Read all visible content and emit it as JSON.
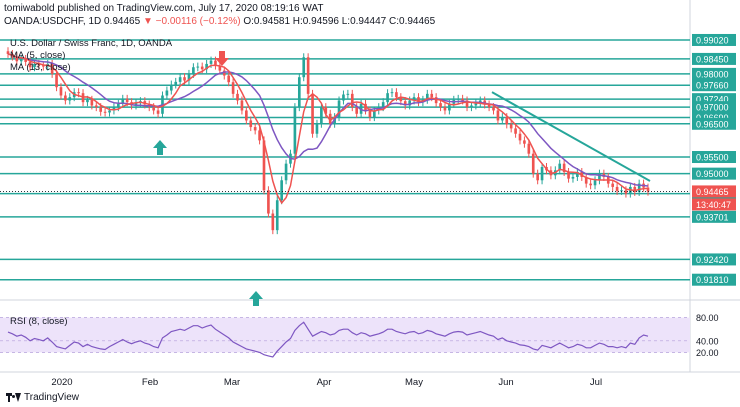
{
  "header": {
    "line1": "tomiwabold published on TradingView.com, July 17, 2020 08:19:16 WAT",
    "symbol": "OANDA:USDCHF, 1D",
    "last": "0.94465",
    "change": "−0.00116 (−0.12%)",
    "ohlc": "O:0.94581 H:0.94596 L:0.94447 C:0.94465"
  },
  "legend": {
    "title": "U.S. Dollar / Swiss Franc, 1D, OANDA",
    "ma5": "MA (5, close)",
    "ma13": "MA (13, close)",
    "rsi": "RSI (8, close)"
  },
  "footer": {
    "brand": "TradingView"
  },
  "colors": {
    "up": "#26a69a",
    "down": "#ef5350",
    "ma5": "#ef5350",
    "ma13": "#7e57c2",
    "level": "#26a69a",
    "trend": "#26a69a",
    "rsi": "#7e57c2",
    "rsiBand": "#ede3fa"
  },
  "chart_data": {
    "type": "candlestick",
    "price_axis": {
      "ticks": [
        "0.99020",
        "0.98450",
        "0.98000",
        "0.97660",
        "0.97240",
        "0.97000",
        "0.96690",
        "0.96500",
        "0.95500",
        "0.95000",
        "0.94400",
        "0.93701",
        "0.92420",
        "0.91810"
      ],
      "last_price": "0.94465",
      "countdown": "13:40:47"
    },
    "time_axis": [
      "2020",
      "Feb",
      "Mar",
      "Apr",
      "May",
      "Jun",
      "Jul"
    ],
    "levels": [
      0.9902,
      0.9845,
      0.98,
      0.9766,
      0.9724,
      0.97,
      0.9669,
      0.965,
      0.955,
      0.95,
      0.944,
      0.93701,
      0.9242,
      0.9181
    ],
    "rsi_axis": [
      "80.00",
      "40.00",
      "20.00"
    ],
    "rsi_range": [
      0,
      100
    ],
    "rsi_band": [
      20,
      80
    ],
    "ohlc_close": [
      0.986,
      0.9852,
      0.9838,
      0.9845,
      0.9836,
      0.982,
      0.983,
      0.9825,
      0.9822,
      0.983,
      0.98,
      0.976,
      0.9735,
      0.972,
      0.973,
      0.9745,
      0.9742,
      0.9715,
      0.9722,
      0.9705,
      0.97,
      0.9686,
      0.9684,
      0.969,
      0.97,
      0.971,
      0.9725,
      0.9715,
      0.9705,
      0.9712,
      0.9718,
      0.9708,
      0.97,
      0.969,
      0.968,
      0.9735,
      0.975,
      0.9768,
      0.9776,
      0.979,
      0.978,
      0.98,
      0.982,
      0.9822,
      0.9814,
      0.983,
      0.984,
      0.9825,
      0.981,
      0.9795,
      0.9775,
      0.974,
      0.972,
      0.969,
      0.966,
      0.964,
      0.963,
      0.96,
      0.945,
      0.938,
      0.933,
      0.942,
      0.948,
      0.953,
      0.956,
      0.97,
      0.979,
      0.985,
      0.974,
      0.962,
      0.965,
      0.97,
      0.968,
      0.965,
      0.967,
      0.972,
      0.9738,
      0.974,
      0.97,
      0.968,
      0.971,
      0.969,
      0.967,
      0.969,
      0.97,
      0.9715,
      0.9742,
      0.9745,
      0.973,
      0.9718,
      0.9705,
      0.972,
      0.973,
      0.9715,
      0.9722,
      0.974,
      0.973,
      0.9712,
      0.97,
      0.969,
      0.971,
      0.9722,
      0.9725,
      0.972,
      0.97,
      0.9705,
      0.9712,
      0.972,
      0.9708,
      0.97,
      0.969,
      0.966,
      0.967,
      0.9648,
      0.9636,
      0.962,
      0.96,
      0.959,
      0.956,
      0.95,
      0.948,
      0.952,
      0.951,
      0.9495,
      0.951,
      0.953,
      0.9505,
      0.9485,
      0.949,
      0.9505,
      0.949,
      0.947,
      0.9465,
      0.948,
      0.95,
      0.949,
      0.947,
      0.946,
      0.9448,
      0.945,
      0.944,
      0.946,
      0.9445,
      0.947,
      0.9458,
      0.9446
    ],
    "rsi_values": [
      55,
      52,
      48,
      50,
      46,
      40,
      44,
      42,
      40,
      45,
      38,
      30,
      28,
      26,
      32,
      38,
      36,
      30,
      34,
      30,
      28,
      26,
      25,
      30,
      34,
      38,
      42,
      38,
      35,
      38,
      40,
      36,
      34,
      30,
      28,
      45,
      50,
      56,
      58,
      60,
      58,
      62,
      66,
      66,
      62,
      65,
      67,
      60,
      55,
      50,
      45,
      38,
      34,
      30,
      26,
      24,
      22,
      20,
      16,
      14,
      12,
      22,
      30,
      38,
      44,
      58,
      66,
      72,
      60,
      48,
      52,
      56,
      54,
      50,
      52,
      58,
      60,
      60,
      54,
      50,
      54,
      52,
      48,
      50,
      52,
      55,
      60,
      60,
      56,
      54,
      52,
      55,
      56,
      52,
      54,
      58,
      56,
      52,
      50,
      48,
      52,
      55,
      56,
      55,
      50,
      52,
      54,
      56,
      53,
      50,
      48,
      42,
      45,
      40,
      38,
      36,
      33,
      32,
      30,
      26,
      24,
      32,
      30,
      28,
      32,
      36,
      32,
      28,
      30,
      34,
      32,
      28,
      28,
      32,
      36,
      34,
      30,
      30,
      28,
      30,
      28,
      36,
      34,
      45,
      50,
      48
    ],
    "ma5_note": "MA (5, close)",
    "ma13_note": "MA (13, close)"
  }
}
